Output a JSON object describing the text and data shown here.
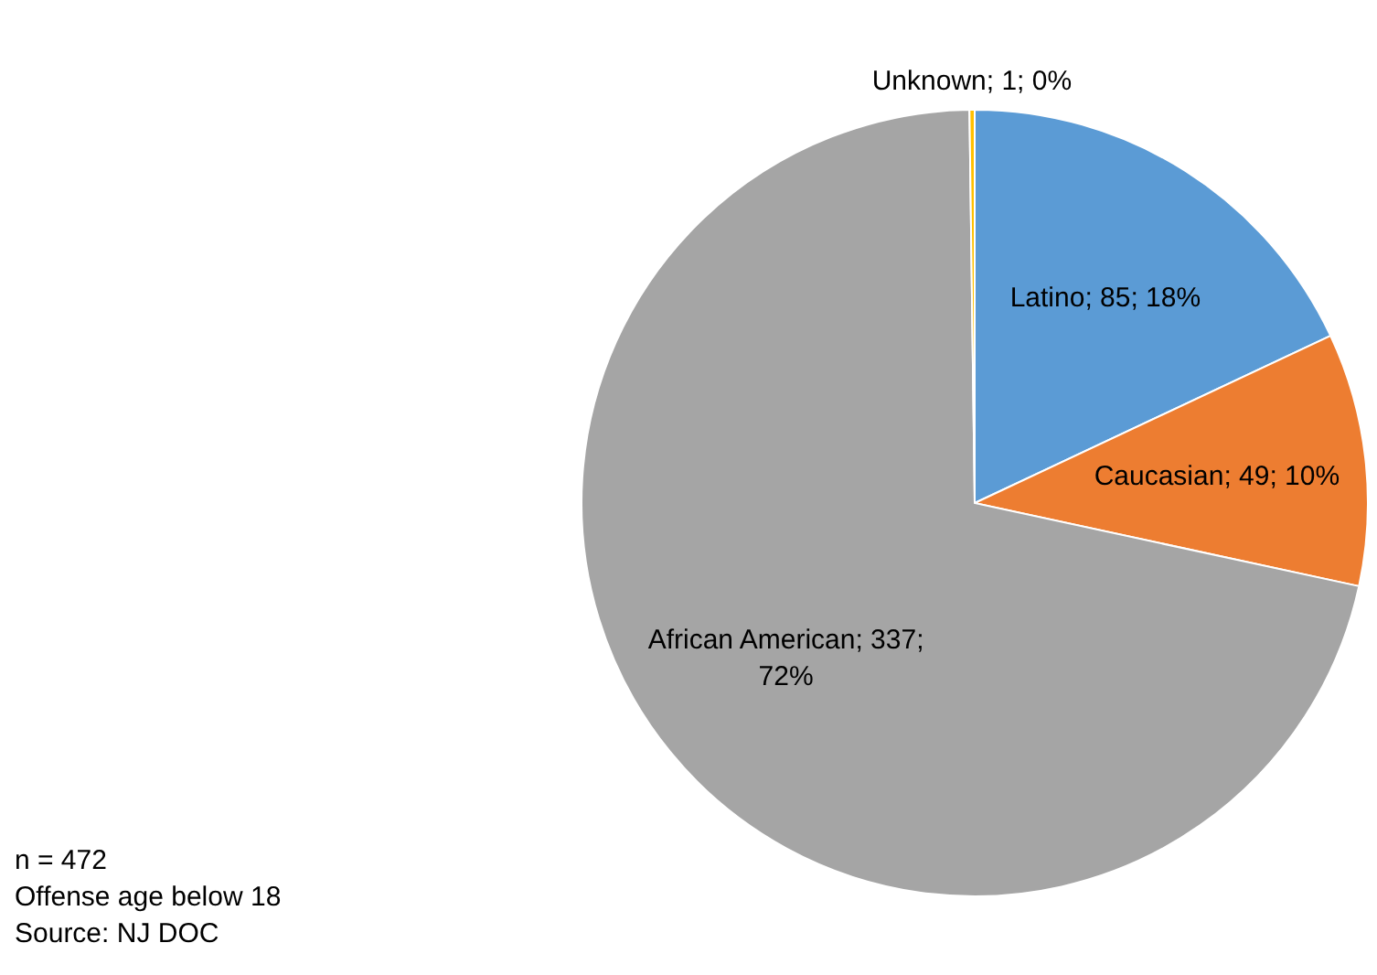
{
  "chart_data": {
    "type": "pie",
    "categories": [
      "Latino",
      "Caucasian",
      "African American",
      "Unknown"
    ],
    "values": [
      85,
      49,
      337,
      1
    ],
    "colors": [
      "#5b9bd5",
      "#ed7d31",
      "#a5a5a5",
      "#ffc000"
    ],
    "value_labels": [
      "85; 18%",
      "49; 10%",
      "337; 72%",
      "1; 0%"
    ],
    "annotations": [
      "n = 472",
      "Offense age below 18",
      "Source: NJ DOC"
    ]
  }
}
